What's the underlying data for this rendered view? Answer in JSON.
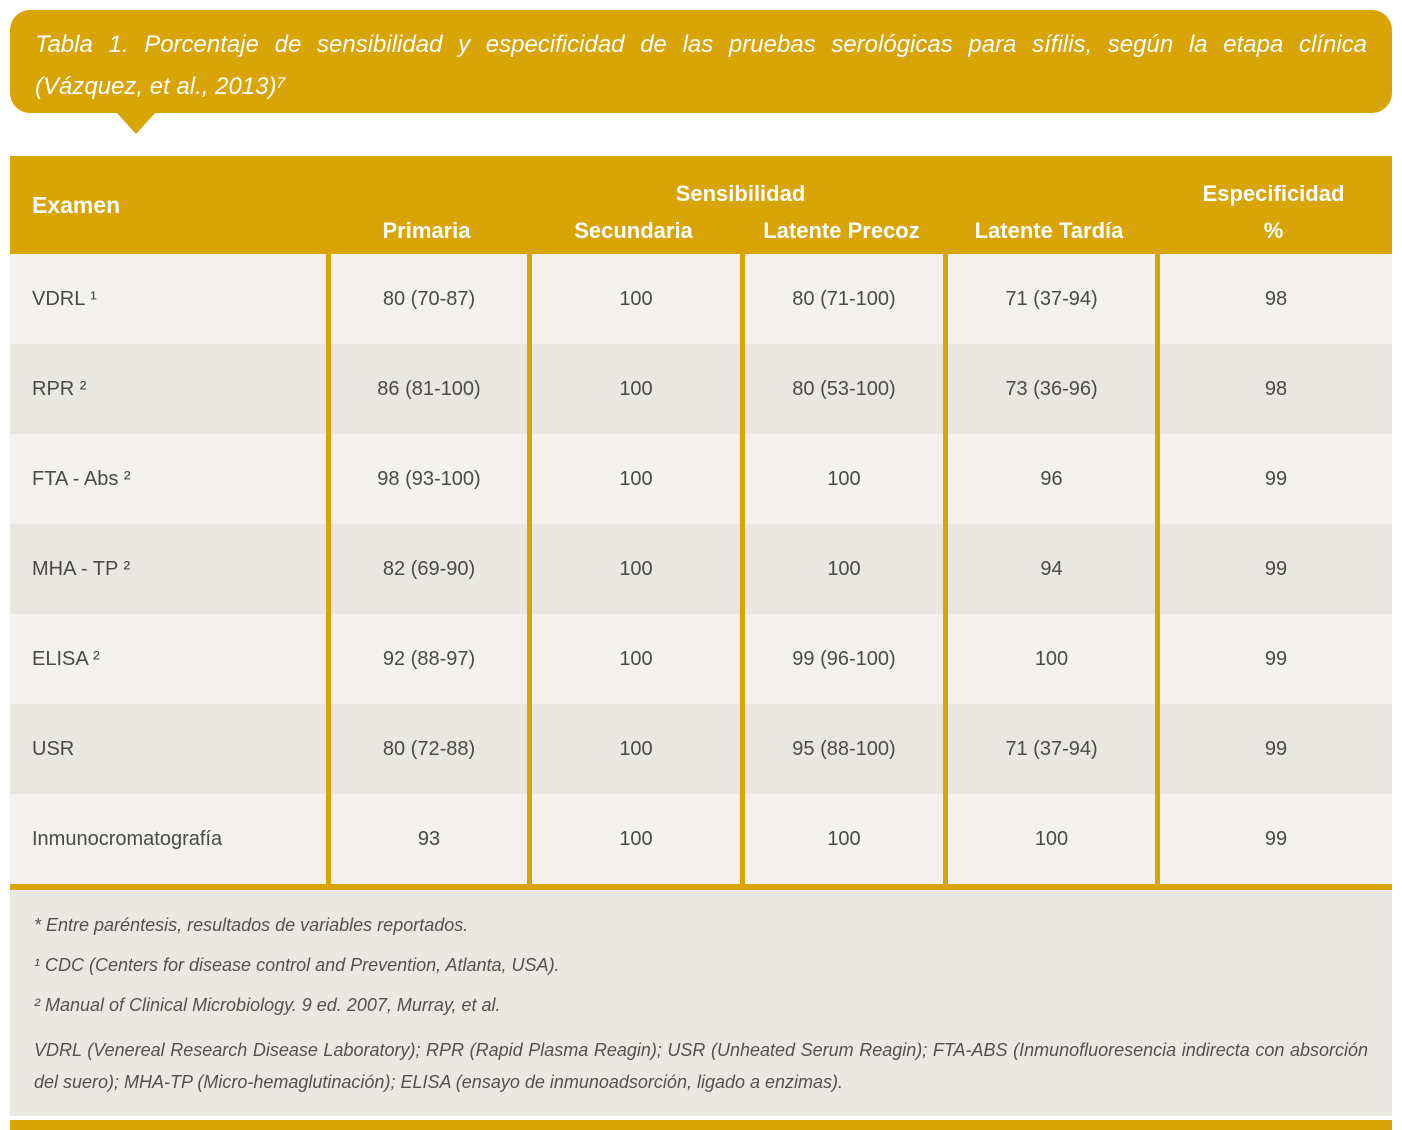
{
  "colors": {
    "gold_accent": "#D8A406",
    "row_light": "#F3F2EF",
    "row_dark": "#E9E7E2",
    "footnote_background": "#EAE8E3",
    "cell_text": "#4B4A45",
    "header_text": "#FFFFFF"
  },
  "title": {
    "line1": "Tabla 1. Porcentaje de sensibilidad y especificidad de las pruebas serológicas para sífilis, según la etapa clínica",
    "line2": "(Vázquez, et al., 2013)⁷"
  },
  "table": {
    "col_exam": "Examen",
    "group_sensibilidad": "Sensibilidad",
    "group_especificidad": "Especificidad",
    "especificidad_unit": "%",
    "subheaders": [
      "Primaria",
      "Secundaria",
      "Latente Precoz",
      "Latente Tardía"
    ],
    "rows": [
      {
        "exam": "VDRL ¹",
        "primaria": "80 (70-87)",
        "secundaria": "100",
        "latente_precoz": "80 (71-100)",
        "latente_tardia": "71 (37-94)",
        "especificidad": "98"
      },
      {
        "exam": "RPR ²",
        "primaria": "86 (81-100)",
        "secundaria": "100",
        "latente_precoz": "80 (53-100)",
        "latente_tardia": "73 (36-96)",
        "especificidad": "98"
      },
      {
        "exam": "FTA - Abs ²",
        "primaria": "98 (93-100)",
        "secundaria": "100",
        "latente_precoz": "100",
        "latente_tardia": "96",
        "especificidad": "99"
      },
      {
        "exam": "MHA - TP ²",
        "primaria": "82 (69-90)",
        "secundaria": "100",
        "latente_precoz": "100",
        "latente_tardia": "94",
        "especificidad": "99"
      },
      {
        "exam": "ELISA ²",
        "primaria": "92 (88-97)",
        "secundaria": "100",
        "latente_precoz": "99 (96-100)",
        "latente_tardia": "100",
        "especificidad": "99"
      },
      {
        "exam": "USR",
        "primaria": "80 (72-88)",
        "secundaria": "100",
        "latente_precoz": "95 (88-100)",
        "latente_tardia": "71 (37-94)",
        "especificidad": "99"
      },
      {
        "exam": "Inmunocromatografía",
        "primaria": "93",
        "secundaria": "100",
        "latente_precoz": "100",
        "latente_tardia": "100",
        "especificidad": "99"
      }
    ]
  },
  "footnotes": [
    "* Entre paréntesis, resultados de variables reportados.",
    "¹ CDC (Centers for disease control and Prevention, Atlanta, USA).",
    "² Manual of Clinical Microbiology. 9 ed. 2007, Murray, et al.",
    "VDRL (Venereal Research Disease Laboratory); RPR (Rapid Plasma Reagin); USR (Unheated Serum Reagin); FTA-ABS (Inmunofluoresencia indirecta con absorción del suero); MHA-TP (Micro-hemaglutinación); ELISA (ensayo de inmunoadsorción, ligado a enzimas)."
  ]
}
